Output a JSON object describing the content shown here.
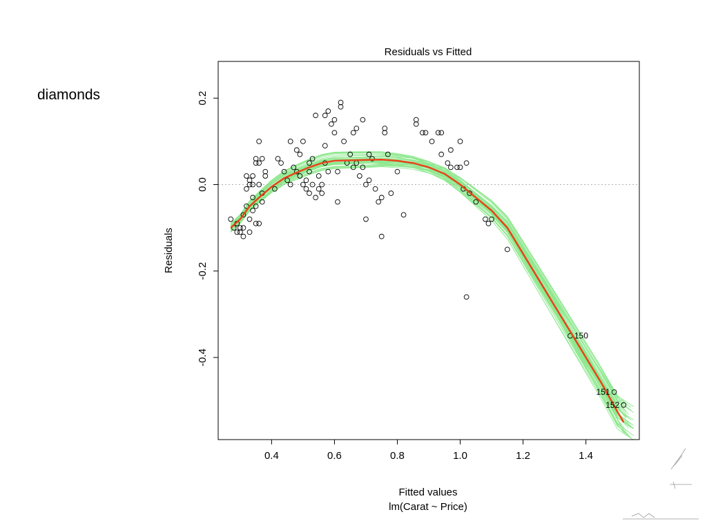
{
  "slide": {
    "label": "diamonds"
  },
  "chart_data": {
    "type": "scatter",
    "title": "Residuals vs Fitted",
    "xlabel": "Fitted values",
    "subtitle": "lm(Carat ~ Price)",
    "ylabel": "Residuals",
    "xlim": [
      0.23,
      1.57
    ],
    "ylim": [
      -0.59,
      0.285
    ],
    "x_ticks": [
      0.4,
      0.6,
      0.8,
      1.0,
      1.2,
      1.4
    ],
    "x_tick_labels": [
      "0.4",
      "0.6",
      "0.8",
      "1.0",
      "1.2",
      "1.4"
    ],
    "y_ticks": [
      0.2,
      0.0,
      -0.2,
      -0.4
    ],
    "y_tick_labels": [
      "0.2",
      "0.0",
      "-0.2",
      "-0.4"
    ],
    "reference_line_y": 0,
    "colors": {
      "points": "#000000",
      "smooth": "#e8431a",
      "bootstrap": "#8fe88f",
      "reference": "#b0b0b0"
    },
    "points": [
      [
        0.27,
        -0.08
      ],
      [
        0.28,
        -0.1
      ],
      [
        0.29,
        -0.11
      ],
      [
        0.29,
        -0.09
      ],
      [
        0.3,
        -0.11
      ],
      [
        0.3,
        -0.1
      ],
      [
        0.31,
        -0.12
      ],
      [
        0.31,
        -0.07
      ],
      [
        0.31,
        -0.1
      ],
      [
        0.32,
        -0.05
      ],
      [
        0.32,
        0.02
      ],
      [
        0.32,
        -0.01
      ],
      [
        0.33,
        -0.08
      ],
      [
        0.33,
        0.0
      ],
      [
        0.33,
        -0.11
      ],
      [
        0.33,
        0.01
      ],
      [
        0.34,
        0.02
      ],
      [
        0.34,
        -0.03
      ],
      [
        0.34,
        0.0
      ],
      [
        0.34,
        -0.06
      ],
      [
        0.35,
        0.06
      ],
      [
        0.35,
        0.05
      ],
      [
        0.35,
        -0.09
      ],
      [
        0.35,
        -0.05
      ],
      [
        0.36,
        0.1
      ],
      [
        0.36,
        0.0
      ],
      [
        0.36,
        -0.09
      ],
      [
        0.36,
        0.05
      ],
      [
        0.37,
        0.06
      ],
      [
        0.37,
        -0.02
      ],
      [
        0.37,
        -0.04
      ],
      [
        0.38,
        0.02
      ],
      [
        0.38,
        0.03
      ],
      [
        0.41,
        -0.01
      ],
      [
        0.42,
        0.06
      ],
      [
        0.43,
        0.05
      ],
      [
        0.44,
        0.03
      ],
      [
        0.45,
        0.01
      ],
      [
        0.46,
        0.1
      ],
      [
        0.46,
        0.0
      ],
      [
        0.47,
        0.04
      ],
      [
        0.48,
        0.03
      ],
      [
        0.48,
        0.08
      ],
      [
        0.49,
        0.07
      ],
      [
        0.49,
        0.02
      ],
      [
        0.5,
        0.1
      ],
      [
        0.5,
        0.0
      ],
      [
        0.51,
        0.01
      ],
      [
        0.51,
        -0.01
      ],
      [
        0.52,
        0.03
      ],
      [
        0.52,
        0.05
      ],
      [
        0.52,
        -0.02
      ],
      [
        0.53,
        0.0
      ],
      [
        0.53,
        0.06
      ],
      [
        0.54,
        0.16
      ],
      [
        0.54,
        -0.03
      ],
      [
        0.55,
        0.02
      ],
      [
        0.55,
        -0.01
      ],
      [
        0.56,
        0.0
      ],
      [
        0.56,
        -0.02
      ],
      [
        0.57,
        0.16
      ],
      [
        0.57,
        0.05
      ],
      [
        0.57,
        0.09
      ],
      [
        0.58,
        0.17
      ],
      [
        0.58,
        0.03
      ],
      [
        0.59,
        0.14
      ],
      [
        0.6,
        0.15
      ],
      [
        0.6,
        0.12
      ],
      [
        0.61,
        0.03
      ],
      [
        0.61,
        -0.04
      ],
      [
        0.62,
        0.18
      ],
      [
        0.62,
        0.19
      ],
      [
        0.63,
        0.1
      ],
      [
        0.64,
        0.05
      ],
      [
        0.65,
        0.07
      ],
      [
        0.66,
        0.12
      ],
      [
        0.66,
        0.04
      ],
      [
        0.67,
        0.13
      ],
      [
        0.67,
        0.05
      ],
      [
        0.68,
        0.02
      ],
      [
        0.69,
        0.15
      ],
      [
        0.69,
        0.04
      ],
      [
        0.7,
        0.0
      ],
      [
        0.7,
        -0.08
      ],
      [
        0.71,
        0.01
      ],
      [
        0.71,
        0.07
      ],
      [
        0.72,
        0.06
      ],
      [
        0.73,
        -0.01
      ],
      [
        0.74,
        -0.04
      ],
      [
        0.75,
        -0.03
      ],
      [
        0.75,
        -0.12
      ],
      [
        0.76,
        0.13
      ],
      [
        0.76,
        0.12
      ],
      [
        0.77,
        0.07
      ],
      [
        0.78,
        -0.02
      ],
      [
        0.8,
        0.03
      ],
      [
        0.82,
        -0.07
      ],
      [
        0.86,
        0.14
      ],
      [
        0.86,
        0.15
      ],
      [
        0.88,
        0.12
      ],
      [
        0.89,
        0.12
      ],
      [
        0.91,
        0.1
      ],
      [
        0.93,
        0.12
      ],
      [
        0.94,
        0.07
      ],
      [
        0.94,
        0.12
      ],
      [
        0.96,
        0.05
      ],
      [
        0.97,
        0.04
      ],
      [
        0.97,
        0.08
      ],
      [
        0.99,
        0.04
      ],
      [
        1.0,
        0.1
      ],
      [
        1.0,
        0.04
      ],
      [
        1.01,
        -0.01
      ],
      [
        1.02,
        0.05
      ],
      [
        1.02,
        -0.26
      ],
      [
        1.03,
        -0.02
      ],
      [
        1.05,
        -0.04
      ],
      [
        1.08,
        -0.08
      ],
      [
        1.09,
        -0.09
      ],
      [
        1.1,
        -0.08
      ],
      [
        1.15,
        -0.15
      ],
      [
        1.35,
        -0.35
      ],
      [
        1.49,
        -0.48
      ],
      [
        1.52,
        -0.51
      ]
    ],
    "point_labels": [
      {
        "text": "150",
        "x": 1.35,
        "y": -0.35
      },
      {
        "text": "151",
        "x": 1.49,
        "y": -0.48
      },
      {
        "text": "152",
        "x": 1.52,
        "y": -0.51
      }
    ],
    "smooth_line": [
      [
        0.27,
        -0.1
      ],
      [
        0.3,
        -0.08
      ],
      [
        0.33,
        -0.05
      ],
      [
        0.36,
        -0.03
      ],
      [
        0.4,
        -0.005
      ],
      [
        0.44,
        0.015
      ],
      [
        0.48,
        0.028
      ],
      [
        0.52,
        0.04
      ],
      [
        0.56,
        0.05
      ],
      [
        0.6,
        0.055
      ],
      [
        0.65,
        0.056
      ],
      [
        0.7,
        0.057
      ],
      [
        0.75,
        0.058
      ],
      [
        0.8,
        0.055
      ],
      [
        0.85,
        0.05
      ],
      [
        0.9,
        0.04
      ],
      [
        0.95,
        0.025
      ],
      [
        1.0,
        0.0
      ],
      [
        1.05,
        -0.03
      ],
      [
        1.1,
        -0.06
      ],
      [
        1.15,
        -0.1
      ],
      [
        1.2,
        -0.16
      ],
      [
        1.25,
        -0.22
      ],
      [
        1.3,
        -0.28
      ],
      [
        1.35,
        -0.34
      ],
      [
        1.4,
        -0.4
      ],
      [
        1.45,
        -0.46
      ],
      [
        1.5,
        -0.525
      ],
      [
        1.52,
        -0.55
      ]
    ]
  }
}
